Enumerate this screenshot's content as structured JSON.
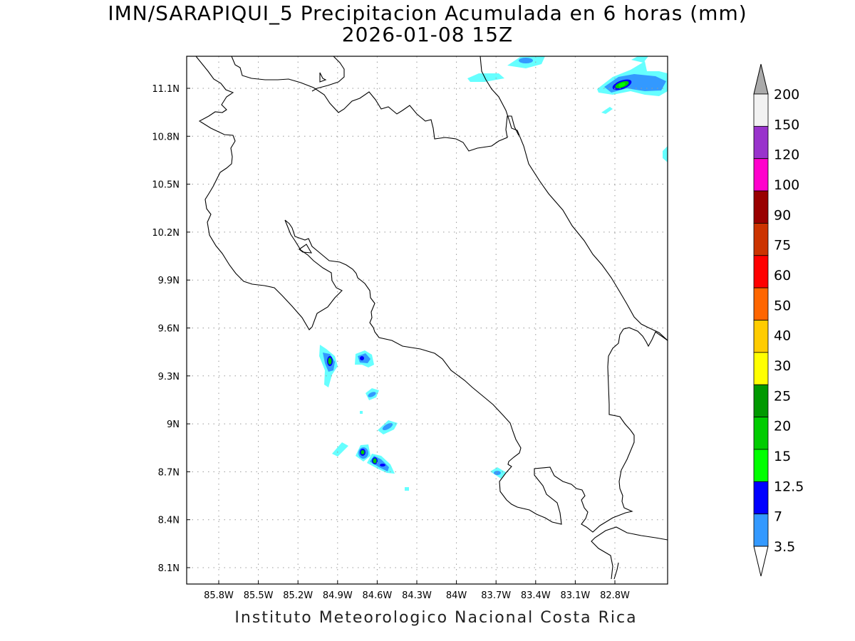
{
  "title": {
    "line1": "IMN/SARAPIQUI_5 Precipitacion Acumulada en 6 horas (mm)",
    "line2": "2026-01-08 15Z"
  },
  "footer": "Instituto Meteorologico Nacional Costa Rica",
  "map": {
    "lon_range": [
      -86.1,
      -82.3
    ],
    "lat_range": [
      7.95,
      11.2
    ],
    "lon_ticks": [
      "85.8W",
      "85.5W",
      "85.2W",
      "84.9W",
      "84.6W",
      "84.3W",
      "84W",
      "83.7W",
      "83.4W",
      "83.1W",
      "82.8W"
    ],
    "lon_tick_values": [
      -85.8,
      -85.5,
      -85.2,
      -84.9,
      -84.6,
      -84.3,
      -84.0,
      -83.7,
      -83.4,
      -83.1,
      -82.8
    ],
    "lat_ticks": [
      "11.1N",
      "10.8N",
      "10.5N",
      "10.2N",
      "9.9N",
      "9.6N",
      "9.3N",
      "9N",
      "8.7N",
      "8.4N",
      "8.1N"
    ],
    "lat_tick_values": [
      11.1,
      10.8,
      10.5,
      10.2,
      9.9,
      9.6,
      9.3,
      9.0,
      8.7,
      8.4,
      8.1
    ],
    "grid": "dotted"
  },
  "colorbar": {
    "levels": [
      "3.5",
      "7",
      "12.5",
      "15",
      "20",
      "25",
      "30",
      "40",
      "50",
      "60",
      "75",
      "90",
      "100",
      "120",
      "150",
      "200"
    ],
    "colors": [
      "#66ffff",
      "#3399ff",
      "#0000ff",
      "#00ff00",
      "#00cc00",
      "#009900",
      "#ffff00",
      "#ffcc00",
      "#ff6600",
      "#ff0000",
      "#cc3300",
      "#990000",
      "#ff00cc",
      "#9933cc",
      "#f2f2f2",
      "#aaaaaa"
    ]
  },
  "precip_cells": [
    {
      "lon": -84.96,
      "lat": 9.39,
      "max_level": "20"
    },
    {
      "lon": -84.73,
      "lat": 9.41,
      "max_level": "12.5"
    },
    {
      "lon": -84.68,
      "lat": 9.19,
      "max_level": "7"
    },
    {
      "lon": -84.56,
      "lat": 8.98,
      "max_level": "7"
    },
    {
      "lon": -84.74,
      "lat": 8.81,
      "max_level": "20"
    },
    {
      "lon": -84.62,
      "lat": 8.76,
      "max_level": "12.5"
    },
    {
      "lon": -84.87,
      "lat": 8.81,
      "max_level": "3.5"
    },
    {
      "lon": -83.72,
      "lat": 8.69,
      "max_level": "7"
    },
    {
      "lon": -82.8,
      "lat": 11.1,
      "max_level": "20"
    },
    {
      "lon": -83.6,
      "lat": 11.16,
      "max_level": "7"
    }
  ]
}
